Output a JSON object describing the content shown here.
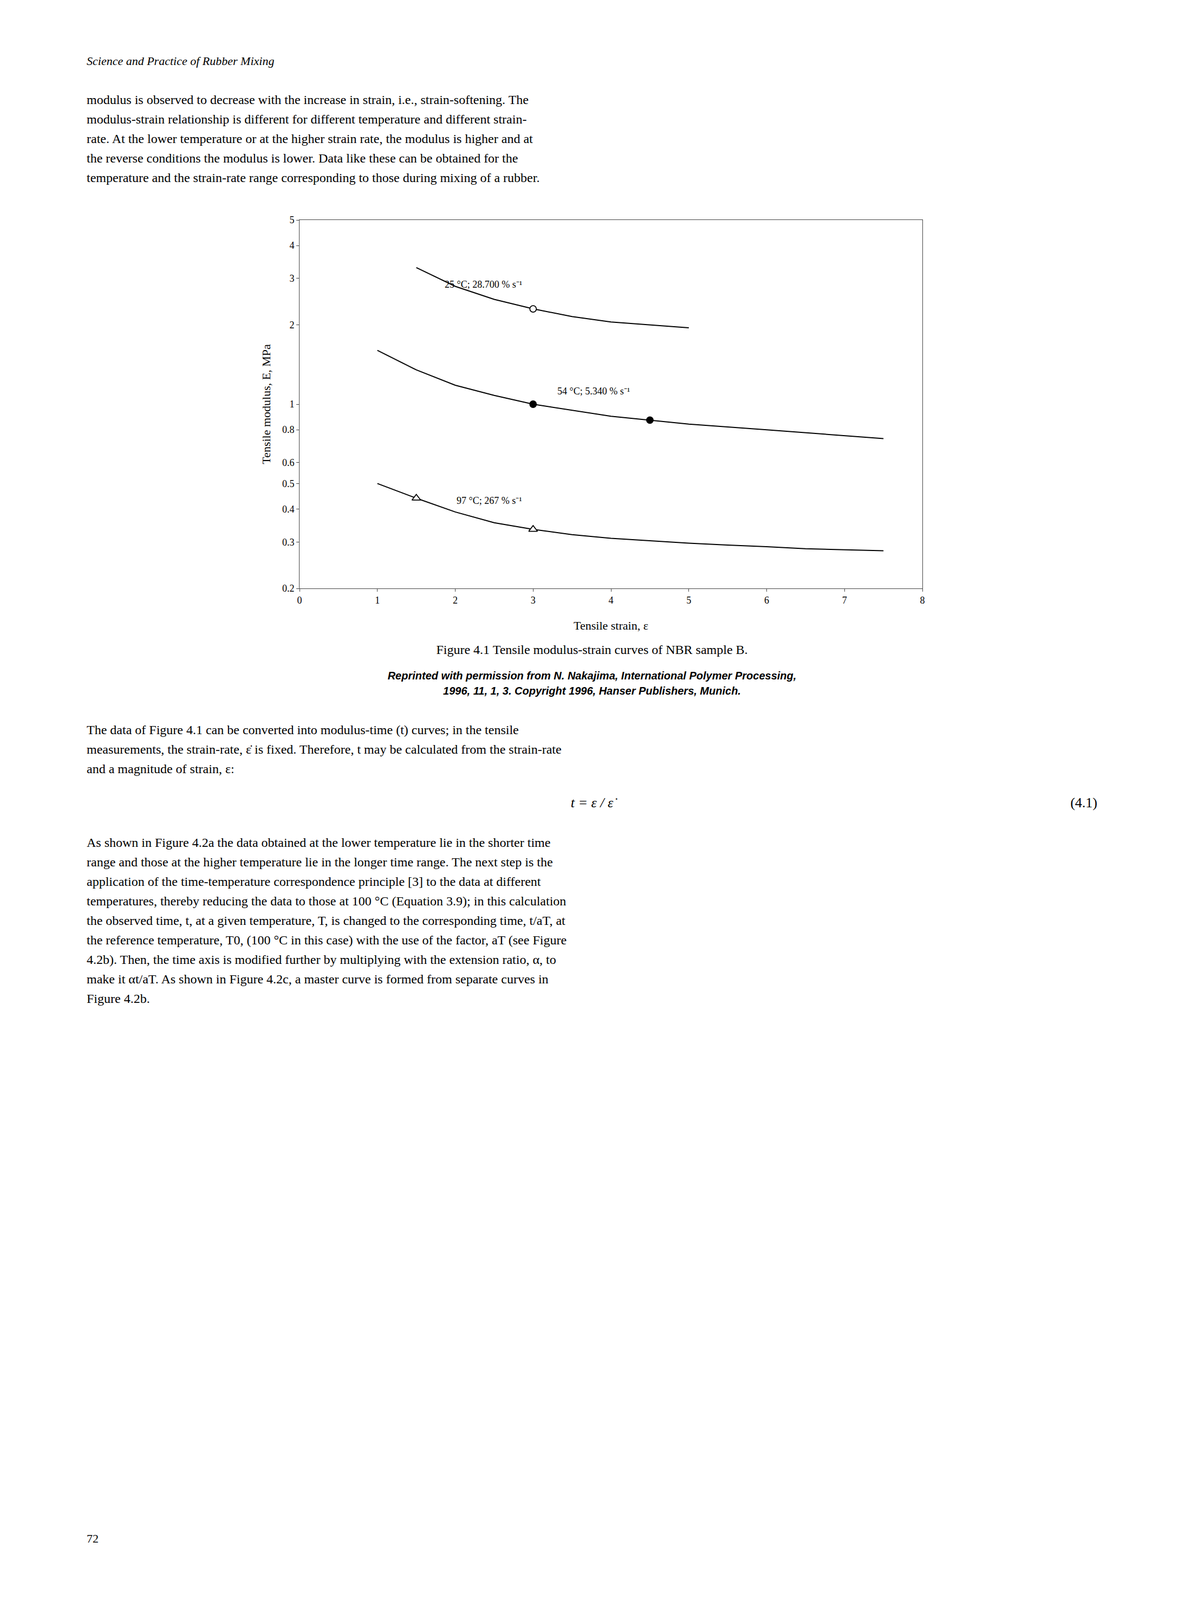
{
  "chart_data": {
    "type": "line",
    "title": "Figure 4.1 Tensile modulus-strain curves of NBR sample B.",
    "xlabel": "Tensile strain, ε",
    "ylabel": "Tensile modulus, E, MPa",
    "log": "y",
    "grid": false,
    "xlim": [
      0,
      8
    ],
    "xticks": [
      0,
      1,
      2,
      3,
      4,
      5,
      6,
      7,
      8
    ],
    "ylim": [
      0.2,
      5
    ],
    "yticks": [
      0.2,
      0.3,
      0.4,
      0.5,
      0.6,
      0.8,
      1,
      2,
      3,
      4,
      5
    ],
    "series": [
      {
        "name": "25 °C; 28.700 % s⁻¹",
        "color": "#000000",
        "marker": "circle-open",
        "x": [
          1.5,
          2.0,
          2.5,
          3.0,
          3.5,
          4.0,
          5.0
        ],
        "values": [
          3.3,
          2.8,
          2.5,
          2.3,
          2.15,
          2.05,
          1.95
        ],
        "marker_points": {
          "x": [
            3.0
          ],
          "values": [
            2.3
          ]
        },
        "label_x": 1.85,
        "label_y": 2.85
      },
      {
        "name": "54 °C; 5.340 % s⁻¹",
        "color": "#000000",
        "marker": "circle",
        "x": [
          1.0,
          1.5,
          2.0,
          2.5,
          3.0,
          3.5,
          4.0,
          4.5,
          5.0,
          6.0,
          7.0,
          7.5
        ],
        "values": [
          1.6,
          1.35,
          1.18,
          1.08,
          1.0,
          0.95,
          0.9,
          0.87,
          0.84,
          0.8,
          0.76,
          0.74
        ],
        "marker_points": {
          "x": [
            3.0,
            4.5
          ],
          "values": [
            1.0,
            0.87
          ]
        },
        "label_x": 3.3,
        "label_y": 1.12
      },
      {
        "name": "97 °C; 267 % s⁻¹",
        "color": "#000000",
        "marker": "triangle-up-open",
        "x": [
          1.0,
          1.5,
          2.0,
          2.5,
          3.0,
          3.5,
          4.0,
          4.5,
          5.0,
          5.5,
          6.0,
          6.5,
          7.5
        ],
        "values": [
          0.5,
          0.44,
          0.39,
          0.355,
          0.335,
          0.32,
          0.31,
          0.303,
          0.297,
          0.292,
          0.288,
          0.283,
          0.278
        ],
        "marker_points": {
          "x": [
            1.5,
            3.0
          ],
          "values": [
            0.44,
            0.335
          ]
        },
        "label_x": 2.0,
        "label_y": 0.43
      }
    ]
  },
  "page_text": {
    "header": "Science and Practice of Rubber Mixing",
    "body_1": "modulus is observed to decrease with the increase in strain, i.e., strain-softening. The\nmodulus-strain relationship is different for different temperature and different strain-\nrate. At the lower temperature or at the higher strain rate, the modulus is higher and at\nthe reverse conditions the modulus is lower. Data like these can be obtained for the\ntemperature and the strain-rate range corresponding to those during mixing of a rubber.",
    "reprint": "Reprinted with permission from N. Nakajima, International Polymer Processing,\n1996, 11, 1, 3. Copyright 1996, Hanser Publishers, Munich.",
    "body_2": "The data of Figure 4.1 can be converted into modulus-time (t) curves; in the tensile\nmeasurements, the strain-rate, ε̇ is fixed. Therefore, t may be calculated from the strain-rate\nand a magnitude of strain, ε:",
    "equation": "t = ε / ε̇",
    "equation_label": "(4.1)",
    "body_3": "As shown in Figure 4.2a the data obtained at the lower temperature lie in the shorter time\nrange and those at the higher temperature lie in the longer time range. The next step is the\napplication of the time-temperature correspondence principle [3] to the data at different\ntemperatures, thereby reducing the data to those at 100 °C (Equation 3.9); in this calculation\nthe observed time, t, at a given temperature, T, is changed to the corresponding time, t/aT, at\nthe reference temperature, T0, (100 °C in this case) with the use of the factor, aT (see Figure\n4.2b). Then, the time axis is modified further by multiplying with the extension ratio, α, to\nmake it αt/aT. As shown in Figure 4.2c, a master curve is formed from separate curves in\nFigure 4.2b.",
    "page_number": "72"
  }
}
